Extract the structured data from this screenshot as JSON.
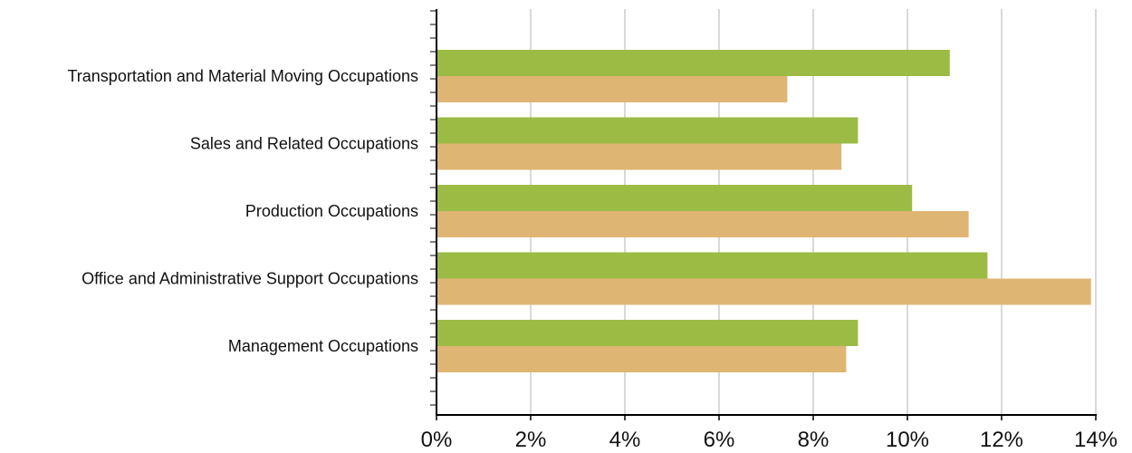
{
  "chart_data": {
    "type": "bar",
    "orientation": "horizontal",
    "categories": [
      "Transportation and Material Moving Occupations",
      "Sales and Related Occupations",
      "Production Occupations",
      "Office and Administrative Support Occupations",
      "Management Occupations"
    ],
    "series": [
      {
        "color": "#9bbb45",
        "values": [
          10.9,
          8.95,
          10.1,
          11.7,
          8.95
        ]
      },
      {
        "color": "#dfb574",
        "values": [
          7.45,
          8.6,
          11.3,
          13.9,
          8.7
        ]
      }
    ],
    "xlim": [
      0,
      14
    ],
    "xticks": [
      0,
      2,
      4,
      6,
      8,
      10,
      12,
      14
    ],
    "xtick_labels": [
      "0%",
      "2%",
      "4%",
      "6%",
      "8%",
      "10%",
      "12%",
      "14%"
    ],
    "grid": true,
    "legend": "none"
  }
}
